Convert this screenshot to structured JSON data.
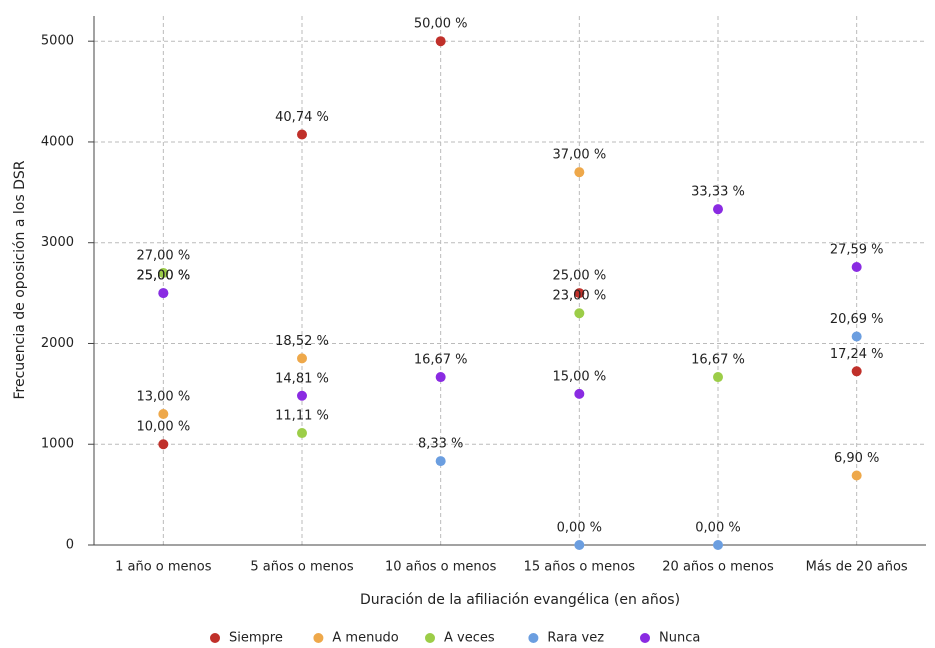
{
  "chart_data": {
    "type": "scatter",
    "x_label": "Duración de la afiliación evangélica (en años)",
    "y_label": "Frecuencia de oposición a los DSR",
    "categories": [
      "1 año o menos",
      "5 años o menos",
      "10 años o menos",
      "15 años o menos",
      "20 años o menos",
      "Más de 20 años"
    ],
    "series": [
      {
        "name": "Siempre",
        "color": "#c0302a",
        "values": [
          1000,
          4074,
          5000,
          2500,
          null,
          1724
        ],
        "value_labels": [
          "10,00 %",
          "40,74 %",
          "50,00 %",
          "25,00 %",
          null,
          "17,24 %"
        ]
      },
      {
        "name": "A menudo",
        "color": "#eea84a",
        "values": [
          1300,
          1852,
          null,
          3700,
          null,
          690
        ],
        "value_labels": [
          "13,00 %",
          "18,52 %",
          null,
          "37,00 %",
          null,
          "6,90 %"
        ]
      },
      {
        "name": "A veces",
        "color": "#9ccd48",
        "values": [
          2700,
          1111,
          null,
          2300,
          1667,
          null
        ],
        "value_labels": [
          "27,00 %",
          "11,11 %",
          null,
          "23,00 %",
          "16,67 %",
          null
        ]
      },
      {
        "name": "Rara vez",
        "color": "#6b9ee0",
        "values": [
          2500,
          null,
          833,
          0,
          0,
          2069
        ],
        "value_labels": [
          "25,00 %",
          null,
          "8,33 %",
          "0,00 %",
          "0,00 %",
          "20,69 %"
        ]
      },
      {
        "name": "Nunca",
        "color": "#8a2be2",
        "values": [
          2500,
          1481,
          1667,
          1500,
          3333,
          2759
        ],
        "value_labels": [
          "25,00 %",
          "14,81 %",
          "16,67 %",
          "15,00 %",
          "33,33 %",
          "27,59 %"
        ]
      }
    ],
    "ylim": [
      0,
      5250
    ],
    "yticks": [
      0,
      1000,
      2000,
      3000,
      4000,
      5000
    ],
    "grid": true,
    "legend": "bottom"
  }
}
